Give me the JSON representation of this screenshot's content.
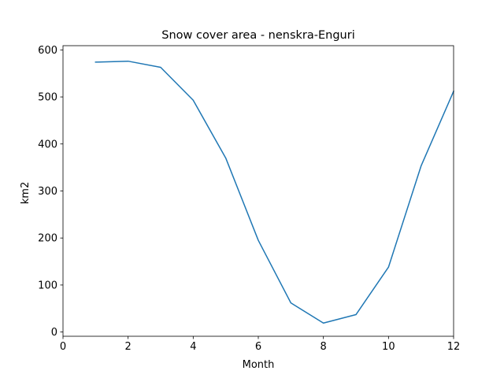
{
  "chart_data": {
    "type": "line",
    "title": "Snow cover area - nenskra-Enguri",
    "xlabel": "Month",
    "ylabel": "km2",
    "xlim": [
      0,
      12
    ],
    "ylim": [
      -9,
      609
    ],
    "xticks": [
      0,
      2,
      4,
      6,
      8,
      10,
      12
    ],
    "yticks": [
      0,
      100,
      200,
      300,
      400,
      500,
      600
    ],
    "grid": false,
    "series": [
      {
        "color": "#1f77b4",
        "x": [
          1,
          2,
          3,
          4,
          5,
          6,
          7,
          8,
          9,
          10,
          11,
          12
        ],
        "y": [
          574,
          576,
          563,
          493,
          370,
          195,
          62,
          19,
          37,
          138,
          353,
          512
        ]
      }
    ]
  }
}
